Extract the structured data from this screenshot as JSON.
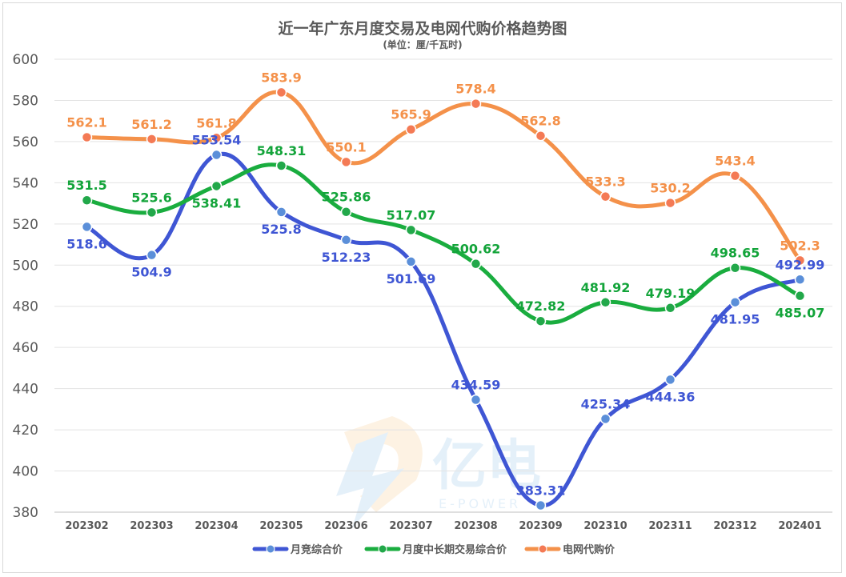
{
  "chart_data": {
    "type": "line",
    "title": "近一年广东月度交易及电网代购价格趋势图",
    "subtitle": "(单位：厘/千瓦时)",
    "categories": [
      "202302",
      "202303",
      "202304",
      "202305",
      "202306",
      "202307",
      "202308",
      "202309",
      "202310",
      "202311",
      "202312",
      "202401"
    ],
    "ylim": [
      380,
      600
    ],
    "yticks": [
      380,
      400,
      420,
      440,
      460,
      480,
      500,
      520,
      540,
      560,
      580,
      600
    ],
    "grid": true,
    "legend_position": "bottom",
    "smooth": true,
    "series": [
      {
        "name": "月竞综合价",
        "color": "#3f56d4",
        "marker_color": "#5b8fd9",
        "values": [
          518.6,
          504.9,
          553.54,
          525.8,
          512.23,
          501.69,
          434.59,
          383.31,
          425.34,
          444.36,
          481.95,
          492.99
        ],
        "labels": [
          "518.6",
          "504.9",
          "553.54",
          "525.8",
          "512.23",
          "501.69",
          "434.59",
          "383.31",
          "425.34",
          "444.36",
          "481.95",
          "492.99"
        ]
      },
      {
        "name": "月度中长期交易综合价",
        "color": "#1aad3f",
        "marker_color": "#22a84a",
        "values": [
          531.5,
          525.6,
          538.41,
          548.31,
          525.86,
          517.07,
          500.62,
          472.82,
          481.92,
          479.19,
          498.65,
          485.07
        ],
        "labels": [
          "531.5",
          "525.6",
          "538.41",
          "548.31",
          "525.86",
          "517.07",
          "500.62",
          "472.82",
          "481.92",
          "479.19",
          "498.65",
          "485.07"
        ]
      },
      {
        "name": "电网代购价",
        "color": "#f4914a",
        "marker_color": "#f47a55",
        "values": [
          562.1,
          561.2,
          561.8,
          583.9,
          550.1,
          565.9,
          578.4,
          562.8,
          533.3,
          530.2,
          543.4,
          502.3
        ],
        "labels": [
          "562.1",
          "561.2",
          "561.8",
          "583.9",
          "550.1",
          "565.9",
          "578.4",
          "562.8",
          "533.3",
          "530.2",
          "543.4",
          "502.3"
        ]
      }
    ]
  },
  "watermark": {
    "brand": "亿电",
    "sub": "E-POWER"
  }
}
